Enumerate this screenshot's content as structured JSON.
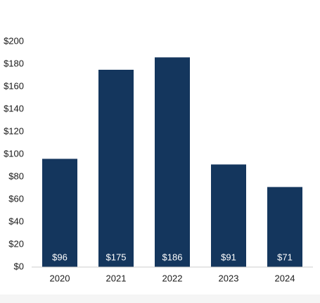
{
  "chart_data": {
    "type": "bar",
    "categories": [
      "2020",
      "2021",
      "2022",
      "2023",
      "2024"
    ],
    "values": [
      96,
      175,
      186,
      91,
      71
    ],
    "value_labels": [
      "$96",
      "$175",
      "$186",
      "$91",
      "$71"
    ],
    "color": "#14365d",
    "ylim": [
      0,
      200
    ],
    "yticks": [
      {
        "value": 0,
        "label": "$0"
      },
      {
        "value": 20,
        "label": "$20"
      },
      {
        "value": 40,
        "label": "$40"
      },
      {
        "value": 60,
        "label": "$60"
      },
      {
        "value": 80,
        "label": "$80"
      },
      {
        "value": 100,
        "label": "$100"
      },
      {
        "value": 120,
        "label": "$120"
      },
      {
        "value": 140,
        "label": "$140"
      },
      {
        "value": 160,
        "label": "$160"
      },
      {
        "value": 180,
        "label": "$180"
      },
      {
        "value": 200,
        "label": "$200"
      }
    ],
    "grid": false
  }
}
